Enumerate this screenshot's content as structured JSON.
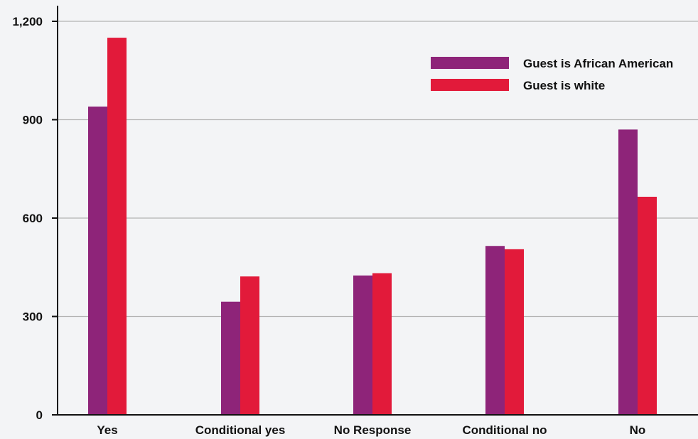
{
  "colors": {
    "background": "#f3f4f6",
    "gridline": "#b3b3b3",
    "axis": "#111111"
  },
  "chart_data": {
    "type": "bar",
    "title": "",
    "xlabel": "",
    "ylabel": "",
    "categories": [
      "Yes",
      "Conditional yes",
      "No Response",
      "Conditional no",
      "No"
    ],
    "series": [
      {
        "name": "Guest is African American",
        "color": "#8e2479",
        "values": [
          940,
          345,
          425,
          515,
          870
        ]
      },
      {
        "name": "Guest is white",
        "color": "#e21a3a",
        "values": [
          1150,
          422,
          432,
          505,
          665
        ]
      }
    ],
    "ylim": [
      0,
      1200
    ],
    "yticks": [
      0,
      300,
      600,
      900,
      1200
    ],
    "ytick_labels": [
      "0",
      "300",
      "600",
      "900",
      "1,200"
    ],
    "grid": true,
    "legend_position": "top-right"
  }
}
